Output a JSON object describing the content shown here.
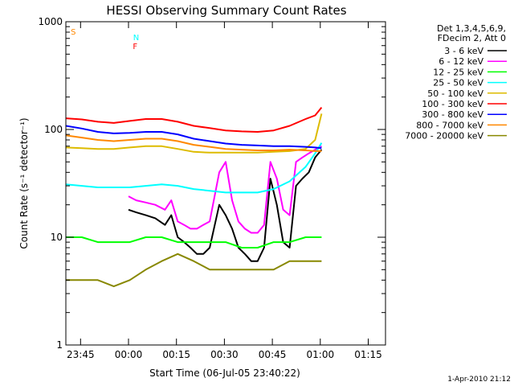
{
  "chart_data": {
    "type": "line",
    "title": "HESSI Observing Summary Count Rates",
    "xlabel": "Start Time (06-Jul-05 23:40:22)",
    "ylabel": "Count Rate (s⁻¹ detector⁻¹)",
    "x_unit": "minutes since 23:40:22",
    "xlim": [
      0,
      100
    ],
    "ylim": [
      1,
      1000
    ],
    "y_scale": "log",
    "x_ticks": [
      {
        "label": "23:45",
        "x": 4.6
      },
      {
        "label": "00:00",
        "x": 19.6
      },
      {
        "label": "00:15",
        "x": 34.6
      },
      {
        "label": "00:30",
        "x": 49.6
      },
      {
        "label": "00:45",
        "x": 64.6
      },
      {
        "label": "01:00",
        "x": 79.6
      },
      {
        "label": "01:15",
        "x": 94.6
      }
    ],
    "y_ticks": [
      {
        "label": "1000",
        "y": 1000
      },
      {
        "label": "100",
        "y": 100
      },
      {
        "label": "10",
        "y": 10
      },
      {
        "label": "1",
        "y": 1
      }
    ],
    "legend_header": [
      "Det 1,3,4,5,6,9,",
      "FDecim 2, Att 0"
    ],
    "legend_position": "right of plot",
    "series": [
      {
        "name": "3 - 6 keV",
        "color": "#000000",
        "x": [
          19.6,
          22,
          25,
          28,
          31,
          33,
          35,
          37,
          39,
          41,
          43,
          45,
          48,
          50,
          52,
          54,
          56,
          58,
          60,
          62,
          64,
          66,
          68,
          70,
          72,
          74,
          76,
          78,
          80
        ],
        "y": [
          18,
          17,
          16,
          15,
          13,
          16,
          10,
          9,
          8,
          7,
          7,
          8,
          20,
          16,
          12,
          8,
          7,
          6,
          6,
          8,
          35,
          20,
          9,
          8,
          30,
          35,
          40,
          55,
          65
        ]
      },
      {
        "name": "6 - 12 keV",
        "color": "#ff00ff",
        "x": [
          19.6,
          22,
          25,
          28,
          31,
          33,
          35,
          37,
          39,
          41,
          43,
          45,
          48,
          50,
          52,
          54,
          56,
          58,
          60,
          62,
          64,
          66,
          68,
          70,
          72,
          74,
          76,
          78,
          80
        ],
        "y": [
          24,
          22,
          21,
          20,
          18,
          22,
          14,
          13,
          12,
          12,
          13,
          14,
          40,
          50,
          22,
          14,
          12,
          11,
          11,
          13,
          50,
          35,
          18,
          16,
          50,
          55,
          60,
          65,
          70
        ]
      },
      {
        "name": "12 - 25 keV",
        "color": "#00ff00",
        "x": [
          0,
          5,
          10,
          15,
          20,
          25,
          30,
          35,
          40,
          45,
          50,
          55,
          60,
          65,
          70,
          75,
          80
        ],
        "y": [
          10,
          10,
          9,
          9,
          9,
          10,
          10,
          9,
          9,
          9,
          9,
          8,
          8,
          9,
          9,
          10,
          10
        ]
      },
      {
        "name": "25 - 50 keV",
        "color": "#00ffff",
        "x": [
          0,
          5,
          10,
          15,
          20,
          25,
          30,
          35,
          40,
          45,
          50,
          55,
          60,
          65,
          70,
          75,
          78,
          80
        ],
        "y": [
          31,
          30,
          29,
          29,
          29,
          30,
          31,
          30,
          28,
          27,
          26,
          26,
          26,
          28,
          33,
          45,
          60,
          75
        ]
      },
      {
        "name": "50 - 100 keV",
        "color": "#ddbb00",
        "x": [
          0,
          5,
          10,
          15,
          20,
          25,
          30,
          35,
          40,
          45,
          50,
          55,
          60,
          65,
          70,
          75,
          78,
          80
        ],
        "y": [
          68,
          67,
          66,
          66,
          68,
          70,
          70,
          66,
          62,
          61,
          61,
          61,
          61,
          62,
          63,
          66,
          80,
          140
        ]
      },
      {
        "name": "100 - 300 keV",
        "color": "#ff0000",
        "x": [
          0,
          5,
          10,
          15,
          20,
          25,
          30,
          35,
          40,
          45,
          50,
          55,
          60,
          65,
          70,
          75,
          78,
          80
        ],
        "y": [
          127,
          124,
          118,
          115,
          120,
          125,
          125,
          118,
          108,
          103,
          98,
          96,
          95,
          98,
          108,
          125,
          135,
          160
        ]
      },
      {
        "name": "300 - 800 keV",
        "color": "#0000ff",
        "x": [
          0,
          5,
          10,
          15,
          20,
          25,
          30,
          35,
          40,
          45,
          50,
          55,
          60,
          65,
          70,
          75,
          78,
          80
        ],
        "y": [
          108,
          102,
          95,
          92,
          93,
          95,
          95,
          90,
          82,
          78,
          74,
          72,
          71,
          70,
          70,
          69,
          68,
          67
        ]
      },
      {
        "name": "800 - 7000 keV",
        "color": "#ff8800",
        "x": [
          0,
          5,
          10,
          15,
          20,
          25,
          30,
          35,
          40,
          45,
          50,
          55,
          60,
          65,
          70,
          75,
          78,
          80
        ],
        "y": [
          88,
          84,
          80,
          78,
          80,
          82,
          82,
          78,
          72,
          69,
          66,
          65,
          64,
          64,
          65,
          64,
          63,
          63
        ]
      },
      {
        "name": "7000 - 20000 keV",
        "color": "#888800",
        "x": [
          0,
          5,
          10,
          15,
          20,
          25,
          30,
          35,
          40,
          45,
          50,
          55,
          60,
          65,
          70,
          75,
          78,
          80
        ],
        "y": [
          4,
          4,
          4,
          3.5,
          4,
          5,
          6,
          7,
          6,
          5,
          5,
          5,
          5,
          5,
          6,
          6,
          6,
          6
        ]
      }
    ],
    "markers": [
      {
        "label": "S",
        "x": 0.8,
        "color": "#ff8800"
      },
      {
        "label": "N",
        "x": 20.3,
        "color": "#00ffff"
      },
      {
        "label": "F",
        "x": 20.2,
        "color": "#ff0000"
      }
    ],
    "footer": "1-Apr-2010 21:12"
  }
}
